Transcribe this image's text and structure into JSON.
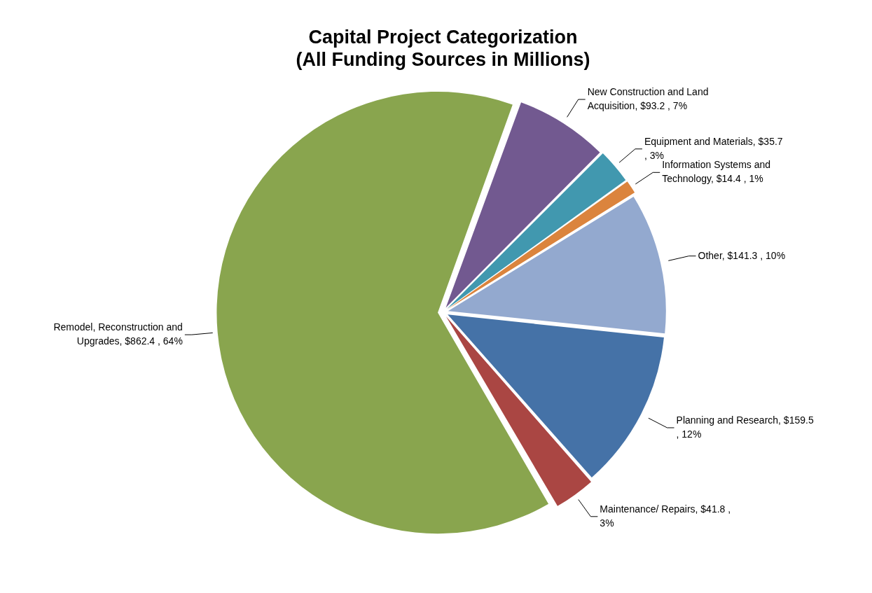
{
  "chart_data": {
    "type": "pie",
    "title": [
      "Capital Project Categorization",
      "(All Funding Sources in Millions)"
    ],
    "categories": [
      "New Construction and Land Acquisition",
      "Equipment and Materials",
      "Information Systems and Technology",
      "Other",
      "Planning and Research",
      "Maintenance/ Repairs",
      "Remodel, Reconstruction and Upgrades"
    ],
    "values": [
      93.2,
      35.7,
      14.4,
      141.3,
      159.5,
      41.8,
      862.4
    ],
    "value_labels": [
      "$93.2 , 7%",
      "$35.7 , 3%",
      "$14.4 , 1%",
      "$141.3 , 10%",
      "$159.5 , 12%",
      "$41.8 , 3%",
      "$862.4 , 64%"
    ],
    "colors": [
      "#725990",
      "#4198af",
      "#db843d",
      "#93a9cf",
      "#4572a7",
      "#aa4643",
      "#89a54e"
    ],
    "legend": false
  }
}
